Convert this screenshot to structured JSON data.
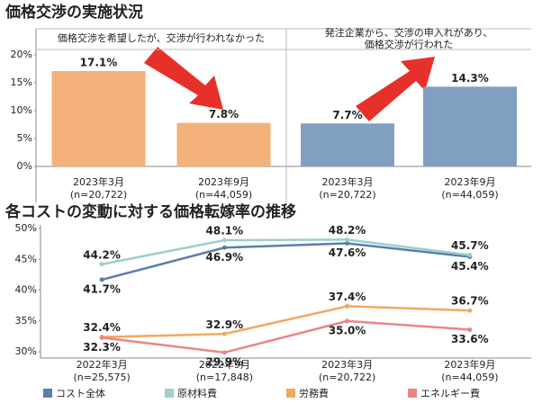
{
  "chart_data": [
    {
      "type": "bar",
      "title": "価格交渉の実施状況",
      "subtitle": "価格交渉を希望したが、交渉が行われなかった",
      "categories": [
        [
          "2023年3月",
          "(n=20,722)"
        ],
        [
          "2023年9月",
          "(n=44,059)"
        ]
      ],
      "values": [
        17.1,
        7.8
      ],
      "value_labels": [
        "17.1%",
        "7.8%"
      ],
      "color": "#f2b27a",
      "ylim": [
        0,
        20
      ],
      "yticks": [
        {
          "value": 0,
          "label": "0%"
        },
        {
          "value": 5,
          "label": "5%"
        },
        {
          "value": 10,
          "label": "10%"
        },
        {
          "value": 15,
          "label": "15%"
        },
        {
          "value": 20,
          "label": "20%"
        }
      ]
    },
    {
      "type": "bar",
      "subtitle": [
        "発注企業から、交渉の申入れがあり、",
        "価格交渉が行われた"
      ],
      "categories": [
        [
          "2023年3月",
          "(n=20,722)"
        ],
        [
          "2023年9月",
          "(n=44,059)"
        ]
      ],
      "values": [
        7.7,
        14.3
      ],
      "value_labels": [
        "7.7%",
        "14.3%"
      ],
      "color": "#819fc0",
      "ylim": [
        0,
        20
      ]
    },
    {
      "type": "line",
      "title": "各コストの変動に対する価格転嫁率の推移",
      "categories": [
        [
          "2022年3月",
          "(n=25,575)"
        ],
        [
          "2022年9月",
          "(n=17,848)"
        ],
        [
          "2023年3月",
          "(n=20,722)"
        ],
        [
          "2023年9月",
          "(n=44,059)"
        ]
      ],
      "series": [
        {
          "name": "コスト全体",
          "color": "#5b7fa8",
          "values": [
            41.7,
            46.9,
            47.6,
            45.4
          ],
          "value_labels": [
            "41.7%",
            "46.9%",
            "47.6%",
            "45.4%"
          ]
        },
        {
          "name": "原材料費",
          "color": "#9dcfcd",
          "values": [
            44.2,
            48.1,
            48.2,
            45.7
          ],
          "value_labels": [
            "44.2%",
            "48.1%",
            "48.2%",
            "45.7%"
          ]
        },
        {
          "name": "労務費",
          "color": "#f2a860",
          "values": [
            32.4,
            32.9,
            37.4,
            36.7
          ],
          "value_labels": [
            "32.4%",
            "32.9%",
            "37.4%",
            "36.7%"
          ]
        },
        {
          "name": "エネルギー費",
          "color": "#e98585",
          "values": [
            32.3,
            29.9,
            35.0,
            33.6
          ],
          "value_labels": [
            "32.3%",
            "29.9%",
            "35.0%",
            "33.6%"
          ]
        }
      ],
      "ylim": [
        29,
        50
      ],
      "yticks": [
        {
          "value": 30,
          "label": "30%"
        },
        {
          "value": 35,
          "label": "35%"
        },
        {
          "value": 40,
          "label": "40%"
        },
        {
          "value": 45,
          "label": "45%"
        },
        {
          "value": 50,
          "label": "50%"
        }
      ]
    }
  ]
}
